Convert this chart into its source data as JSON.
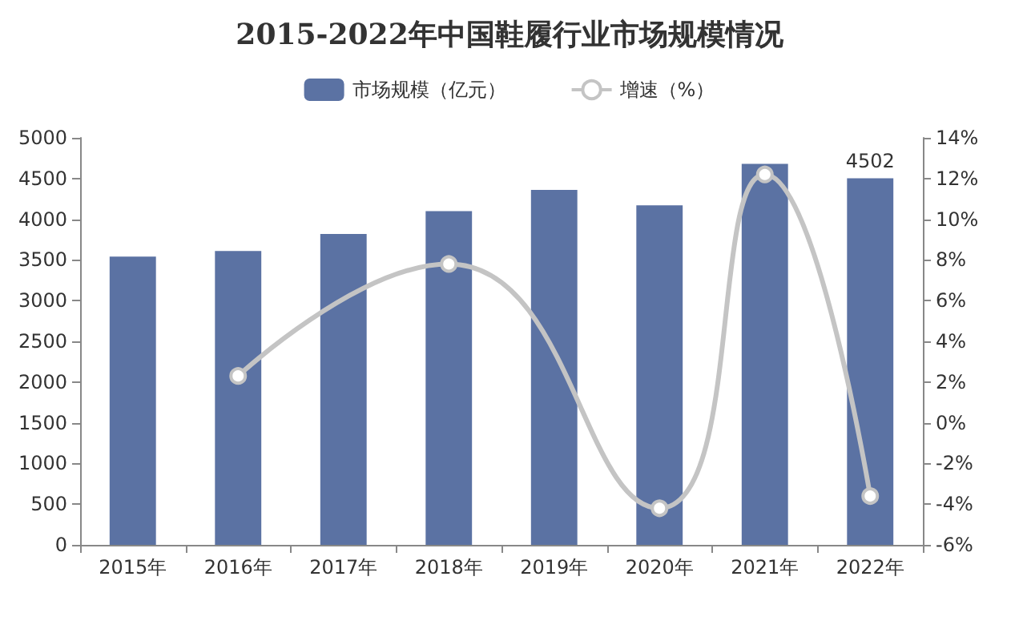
{
  "chart_data": {
    "type": "bar",
    "title": "2015-2022年中国鞋履行业市场规模情况",
    "categories": [
      "2015年",
      "2016年",
      "2017年",
      "2018年",
      "2019年",
      "2020年",
      "2021年",
      "2022年"
    ],
    "series": [
      {
        "name": "市场规模（亿元）",
        "color": "#5b72a3",
        "values": [
          3540,
          3610,
          3820,
          4100,
          4360,
          4170,
          4680,
          4502
        ],
        "value_labels": [
          null,
          null,
          null,
          null,
          null,
          null,
          null,
          "4502"
        ]
      },
      {
        "name": "增速（%）",
        "type": "line",
        "axis": "y2",
        "color": "#c4c4c4",
        "values": [
          null,
          2.3,
          null,
          7.8,
          null,
          -4.2,
          12.2,
          -3.6
        ]
      }
    ],
    "ylim": [
      0,
      5000
    ],
    "yticks": [
      0,
      500,
      1000,
      1500,
      2000,
      2500,
      3000,
      3500,
      4000,
      4500,
      5000
    ],
    "y2lim": [
      -6,
      14
    ],
    "y2ticks": [
      {
        "value": -6,
        "label": "-6%"
      },
      {
        "value": -4,
        "label": "-4%"
      },
      {
        "value": -2,
        "label": "-2%"
      },
      {
        "value": 0,
        "label": "0%"
      },
      {
        "value": 2,
        "label": "2%"
      },
      {
        "value": 4,
        "label": "4%"
      },
      {
        "value": 6,
        "label": "6%"
      },
      {
        "value": 8,
        "label": "8%"
      },
      {
        "value": 10,
        "label": "10%"
      },
      {
        "value": 12,
        "label": "12%"
      },
      {
        "value": 14,
        "label": "14%"
      }
    ],
    "legend": "top",
    "grid": false,
    "marker": "circle"
  }
}
